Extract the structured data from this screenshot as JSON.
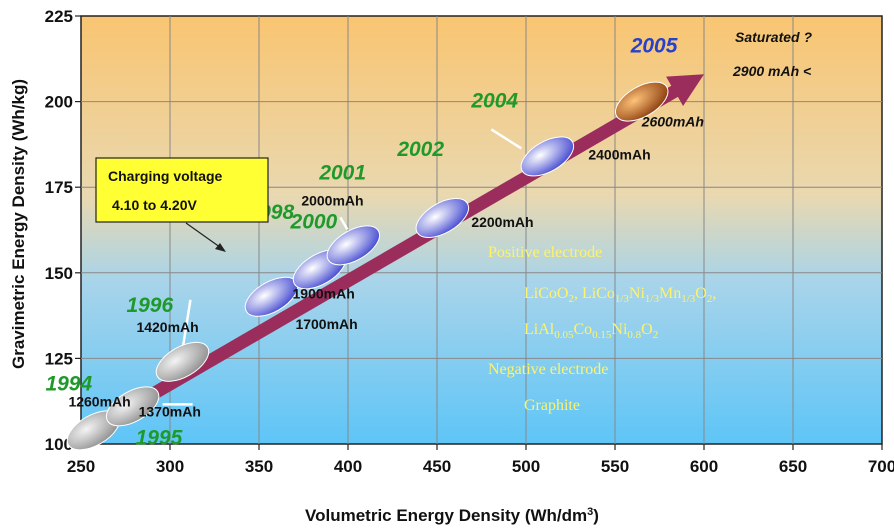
{
  "chart_data": {
    "type": "scatter",
    "xlabel": "Volumetric  Energy  Density (Wh/dm",
    "xlabel_sup": "3",
    "xlabel_end": ")",
    "ylabel": "Gravimetric  Energy   Density (Wh/kg)",
    "xlim": [
      250,
      700
    ],
    "ylim": [
      100,
      225
    ],
    "x_ticks": [
      "250",
      "300",
      "350",
      "400",
      "450",
      "500",
      "550",
      "600",
      "650",
      "700"
    ],
    "y_ticks": [
      "100",
      "125",
      "150",
      "175",
      "200",
      "225"
    ],
    "grid": true,
    "points": [
      {
        "year": "1994",
        "capacity": "1260mAh",
        "x": 257,
        "y": 104,
        "color": "#b9b9b9"
      },
      {
        "year": "1995",
        "capacity": "1370mAh",
        "x": 279,
        "y": 111,
        "color": "#b9b9b9"
      },
      {
        "year": "1996",
        "capacity": "1420mAh",
        "x": 307,
        "y": 124,
        "color": "#b9b9b9"
      },
      {
        "year": "1998",
        "capacity": "1700mAh",
        "x": 357,
        "y": 143,
        "color": "#a6a9ee"
      },
      {
        "year": "2000",
        "capacity": "1900mAh",
        "x": 384,
        "y": 151,
        "color": "#a6a9ee"
      },
      {
        "year": "2001",
        "capacity": "2000mAh",
        "x": 403,
        "y": 158,
        "color": "#a6a9ee"
      },
      {
        "year": "2002",
        "capacity": "2200mAh",
        "x": 453,
        "y": 166,
        "color": "#a6a9ee"
      },
      {
        "year": "2004",
        "capacity": "2400mAh",
        "x": 512,
        "y": 184,
        "color": "#a6a9ee"
      },
      {
        "year": "2005",
        "capacity": "2600mAh",
        "x": 565,
        "y": 200,
        "color": "#c0641e"
      }
    ],
    "trend_arrow": {
      "from": [
        252,
        103
      ],
      "to": [
        600,
        208
      ],
      "color": "#9b2d5d"
    },
    "annotations": {
      "saturated": "Saturated ?",
      "saturated_value": "2900 mAh <",
      "charging_voltage_line1": "Charging voltage",
      "charging_voltage_line2": "4.10 to 4.20V",
      "positive_electrode": "Positive electrode",
      "negative_electrode": "Negative electrode",
      "graphite": "Graphite",
      "formula1": {
        "a": "LiCoO",
        "a_sub": "2",
        "b": ", LiCo",
        "b_sub": "1/3",
        "c": "Ni",
        "c_sub": "1/3",
        "d": "Mn",
        "d_sub": "1/3",
        "e": "O",
        "e_sub": "2",
        "f": ","
      },
      "formula2": {
        "a": "LiAl",
        "a_sub": "0.05",
        "b": "Co",
        "b_sub": "0.15",
        "c": "Ni",
        "c_sub": "0.8",
        "d": "O",
        "d_sub": "2"
      }
    },
    "colors": {
      "background_top": "#f9c571",
      "background_bottom": "#5ec5f7",
      "grid": "#888888",
      "year_green": "#1f9a2a",
      "year_blue": "#2741c9",
      "electrode_text": "#fff36a",
      "callout_fill": "#ffff33"
    }
  }
}
